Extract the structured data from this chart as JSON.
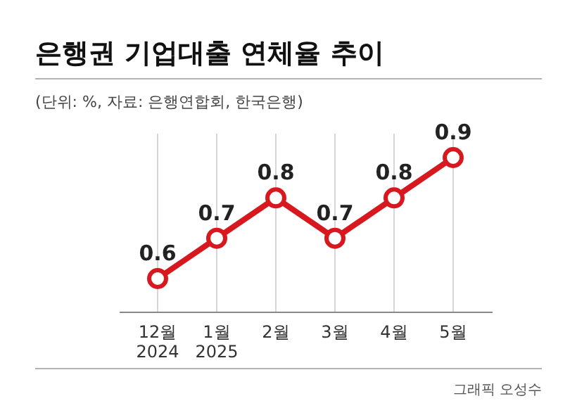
{
  "chart_data": {
    "type": "line",
    "title": "은행권 기업대출 연체율 추이",
    "subtitle": "(단위: %, 자료: 은행연합회, 한국은행)",
    "categories": [
      "12월\n2024",
      "1월\n2025",
      "2월",
      "3월",
      "4월",
      "5월"
    ],
    "series": [
      {
        "color": "#d7191f",
        "values": [
          0.6,
          0.7,
          0.8,
          0.7,
          0.8,
          0.9
        ]
      }
    ],
    "data_labels": true,
    "grid": "x",
    "marker": "circle",
    "line_style": "solid",
    "annotations": [
      "그래픽 오성수"
    ]
  }
}
